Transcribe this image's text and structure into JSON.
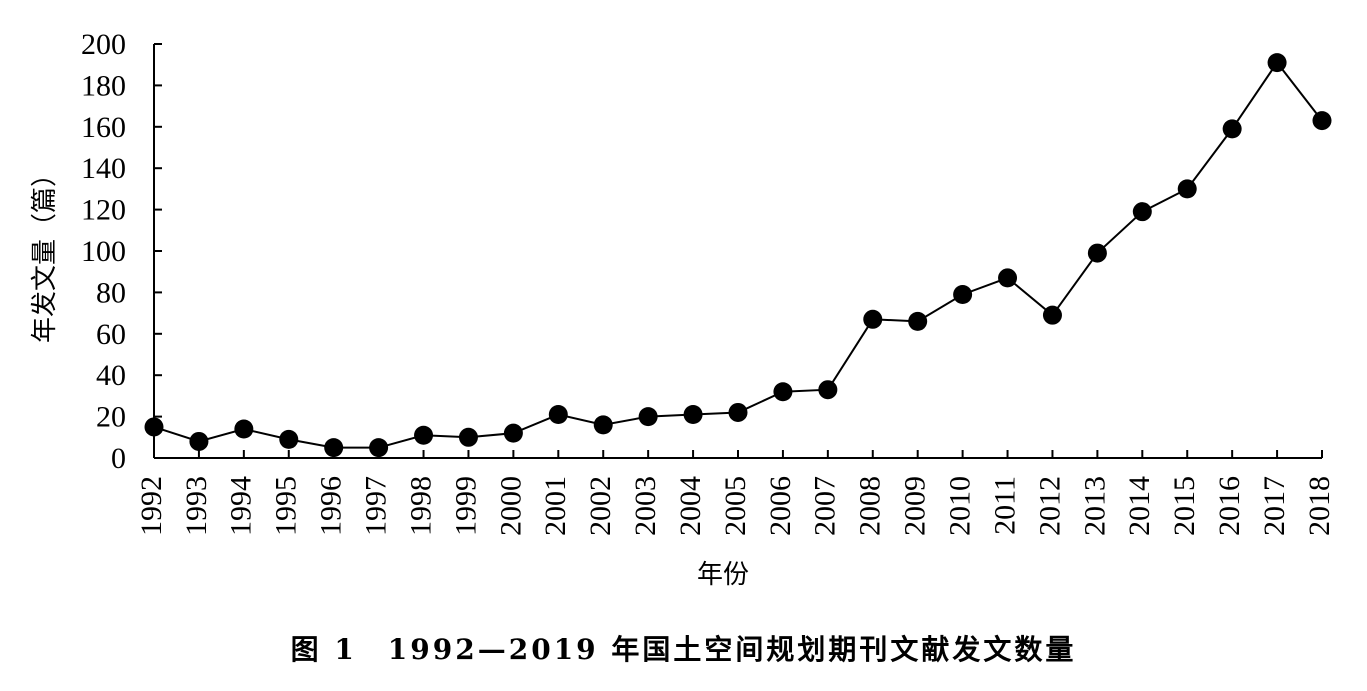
{
  "chart_data": {
    "type": "line",
    "title": "图 1　1992—2019 年国土空间规划期刊文献发文数量",
    "xlabel": "年份",
    "ylabel": "年发文量（篇）",
    "ylim": [
      0,
      200
    ],
    "yticks": [
      "0",
      "20",
      "40",
      "60",
      "80",
      "100",
      "120",
      "140",
      "160",
      "180",
      "200"
    ],
    "grid": false,
    "categories": [
      "1992",
      "1993",
      "1994",
      "1995",
      "1996",
      "1997",
      "1998",
      "1999",
      "2000",
      "2001",
      "2002",
      "2003",
      "2004",
      "2005",
      "2006",
      "2007",
      "2008",
      "2009",
      "2010",
      "2011",
      "2012",
      "2013",
      "2014",
      "2015",
      "2016",
      "2017",
      "2018"
    ],
    "series": [
      {
        "values": [
          15,
          8,
          14,
          9,
          5,
          5,
          11,
          10,
          12,
          21,
          16,
          20,
          21,
          22,
          32,
          33,
          67,
          66,
          79,
          87,
          69,
          99,
          119,
          130,
          159,
          191,
          163
        ],
        "color": "#000000"
      }
    ]
  }
}
